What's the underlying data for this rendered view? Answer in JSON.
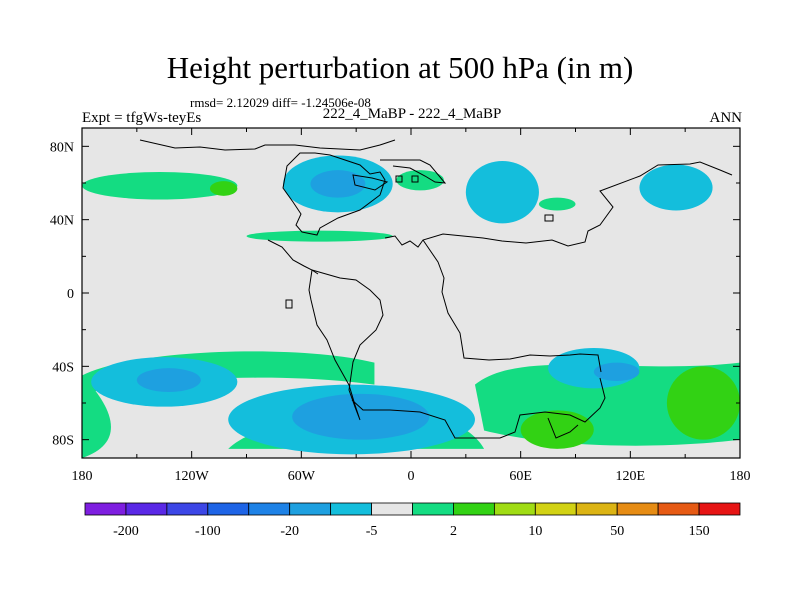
{
  "chart_data": {
    "type": "heatmap",
    "title": "Height perturbation at 500 hPa (in m)",
    "stats_text": "rmsd= 2.12029 diff= -1.24506e-08",
    "left_label": "Expt = tfgWs-teyEs",
    "center_label": "222_4_MaBP - 222_4_MaBP",
    "right_label": "ANN",
    "x_ticks": [
      "180",
      "120W",
      "60W",
      "0",
      "60E",
      "120E",
      "180"
    ],
    "x_tick_values": [
      -180,
      -120,
      -60,
      0,
      60,
      120,
      180
    ],
    "y_ticks": [
      "80N",
      "40N",
      "0",
      "40S",
      "80S"
    ],
    "y_tick_values": [
      80,
      40,
      0,
      -40,
      -80
    ],
    "xlim": [
      -180,
      180
    ],
    "ylim": [
      -90,
      90
    ],
    "colorbar": {
      "labels": [
        "-200",
        "-100",
        "-20",
        "-5",
        "2",
        "10",
        "50",
        "150"
      ],
      "colors": [
        "#7e1ee0",
        "#5a28e6",
        "#3c46e6",
        "#1e64e6",
        "#1e82e6",
        "#1ea0e0",
        "#14bedc",
        "#e6e6e6",
        "#14dc82",
        "#32d214",
        "#a0dc14",
        "#d2d214",
        "#dcb414",
        "#e68c14",
        "#e65a14",
        "#e61414"
      ],
      "background_color": "#e6e6e6"
    },
    "regions": [
      {
        "name": "blob-na-pacific-green",
        "level": "2 to 10",
        "color": "#14dc82",
        "lon": [
          -180,
          -95
        ],
        "lat": [
          51,
          66
        ]
      },
      {
        "name": "blob-na-pacific-core",
        "level": "10 to 20",
        "color": "#32d214",
        "lon": [
          -110,
          -95
        ],
        "lat": [
          53,
          61
        ]
      },
      {
        "name": "blob-n-america-atlantic-blue",
        "level": "-5 to -2",
        "color": "#14bedc",
        "lon": [
          -70,
          -10
        ],
        "lat": [
          44,
          75
        ]
      },
      {
        "name": "blob-n-america-atlantic-core",
        "level": "-10 to -5",
        "color": "#1ea0e0",
        "lon": [
          -55,
          -25
        ],
        "lat": [
          52,
          67
        ]
      },
      {
        "name": "blob-europe-green",
        "level": "2 to 10",
        "color": "#14dc82",
        "lon": [
          -8,
          18
        ],
        "lat": [
          56,
          67
        ]
      },
      {
        "name": "blob-asia-blue",
        "level": "-5 to -2",
        "color": "#14bedc",
        "lon": [
          30,
          70
        ],
        "lat": [
          38,
          72
        ]
      },
      {
        "name": "blob-asia-green",
        "level": "2 to 10",
        "color": "#14dc82",
        "lon": [
          70,
          90
        ],
        "lat": [
          45,
          52
        ]
      },
      {
        "name": "blob-npacific-blue",
        "level": "-5 to -2",
        "color": "#14bedc",
        "lon": [
          125,
          165
        ],
        "lat": [
          45,
          70
        ]
      },
      {
        "name": "blob-equatorial-pacific-green",
        "level": "2 to 10",
        "color": "#14dc82",
        "lon": [
          -90,
          -10
        ],
        "lat": [
          28,
          34
        ]
      },
      {
        "name": "blob-sh-pacific-blue",
        "level": "-5 to -2",
        "color": "#14bedc",
        "lon": [
          -175,
          -95
        ],
        "lat": [
          -62,
          -35
        ]
      },
      {
        "name": "blob-sh-pacific-core",
        "level": "-10 to -5",
        "color": "#1ea0e0",
        "lon": [
          -150,
          -115
        ],
        "lat": [
          -54,
          -41
        ]
      },
      {
        "name": "blob-southern-ocean-blue",
        "level": "-5 to -2",
        "color": "#14bedc",
        "lon": [
          -100,
          35
        ],
        "lat": [
          -88,
          -50
        ]
      },
      {
        "name": "blob-southern-ocean-core",
        "level": "-10 to -5",
        "color": "#1ea0e0",
        "lon": [
          -65,
          10
        ],
        "lat": [
          -80,
          -55
        ]
      },
      {
        "name": "blob-indian-ocean-blue",
        "level": "-5 to -2",
        "color": "#14bedc",
        "lon": [
          75,
          125
        ],
        "lat": [
          -52,
          -30
        ]
      },
      {
        "name": "blob-indian-ocean-core",
        "level": "-10 to -5",
        "color": "#1ea0e0",
        "lon": [
          100,
          125
        ],
        "lat": [
          -48,
          -38
        ]
      },
      {
        "name": "blob-south-atlantic-green",
        "level": "2 to 10",
        "color": "#14dc82",
        "lon": [
          -180,
          180
        ],
        "lat": [
          -90,
          -35
        ]
      },
      {
        "name": "blob-south-indian-core",
        "level": "10 to 20",
        "color": "#32d214",
        "lon": [
          60,
          100
        ],
        "lat": [
          -85,
          -64
        ]
      },
      {
        "name": "blob-south-pacific-core",
        "level": "10 to 20",
        "color": "#32d214",
        "lon": [
          140,
          180
        ],
        "lat": [
          -80,
          -40
        ]
      }
    ]
  }
}
